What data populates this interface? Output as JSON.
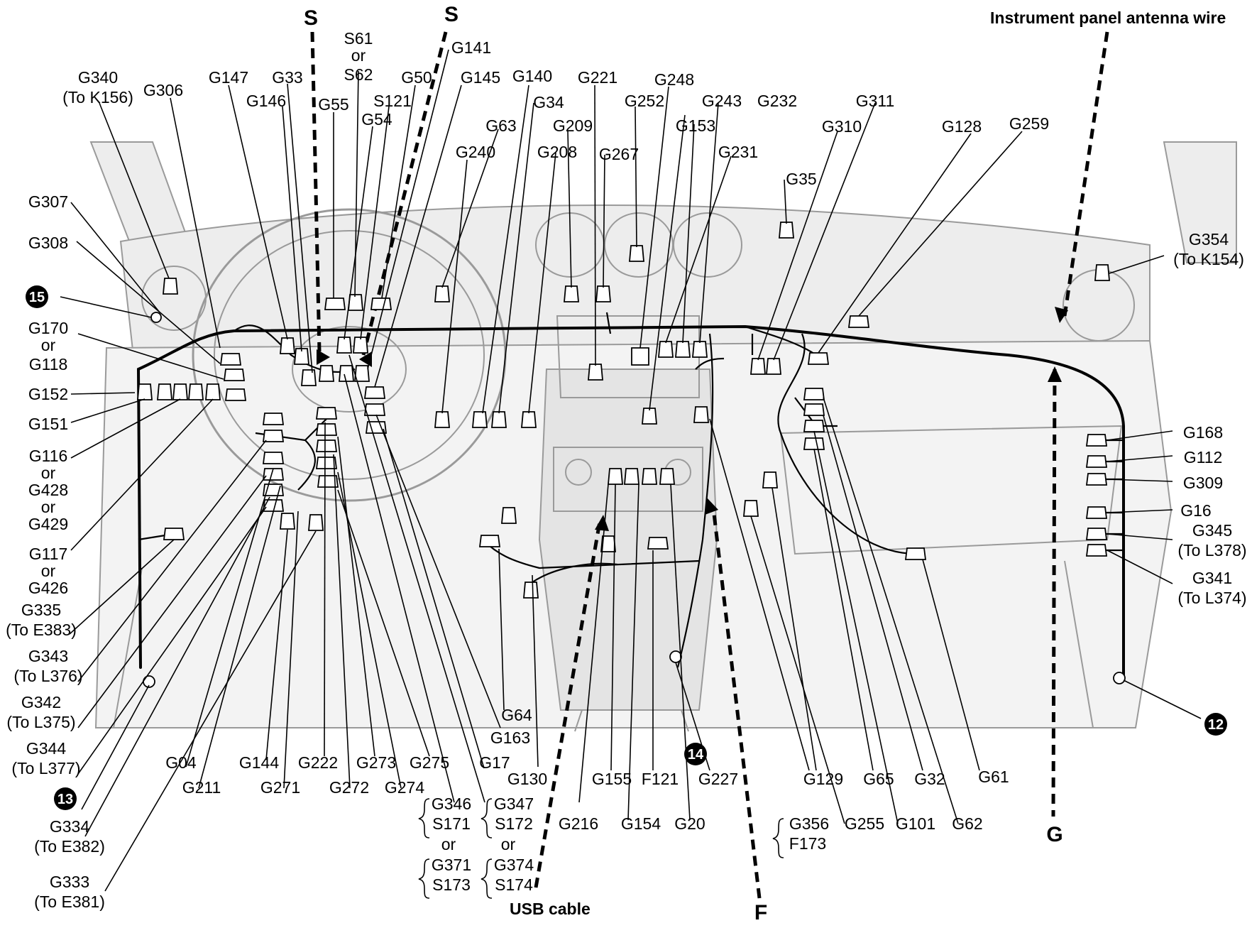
{
  "direction_markers": {
    "s_left": "S",
    "s_right": "S",
    "f": "F",
    "g": "G",
    "instrument_panel_antenna_wire": "Instrument panel antenna wire",
    "usb_cable": "USB cable"
  },
  "badges": {
    "b12": "12",
    "b13": "13",
    "b14": "14",
    "b15": "15"
  },
  "labels": {
    "g340": "G340",
    "to_k156": "(To K156)",
    "g306": "G306",
    "g147": "G147",
    "g33": "G33",
    "g146": "G146",
    "g55": "G55",
    "s61": "S61",
    "or_s61": "or",
    "s62": "S62",
    "g54": "G54",
    "s121": "S121",
    "g50": "G50",
    "g141": "G141",
    "g145": "G145",
    "g140": "G140",
    "g34": "G34",
    "g63": "G63",
    "g240": "G240",
    "g221": "G221",
    "g209": "G209",
    "g208": "G208",
    "g248": "G248",
    "g252": "G252",
    "g267": "G267",
    "g243": "G243",
    "g153": "G153",
    "g232": "G232",
    "g231": "G231",
    "g311": "G311",
    "g310": "G310",
    "g35": "G35",
    "g128": "G128",
    "g259": "G259",
    "g354": "G354",
    "to_k154": "(To K154)",
    "g307": "G307",
    "g308": "G308",
    "g170": "G170",
    "or_g170": "or",
    "g118": "G118",
    "g152": "G152",
    "g151": "G151",
    "g116": "G116",
    "or_g116a": "or",
    "g428": "G428",
    "or_g116b": "or",
    "g429": "G429",
    "g117": "G117",
    "or_g117": "or",
    "g426": "G426",
    "g335": "G335",
    "to_e383": "(To E383)",
    "g343": "G343",
    "to_l376": "(To L376)",
    "g342": "G342",
    "to_l375": "(To L375)",
    "g344": "G344",
    "to_l377": "(To L377)",
    "g334": "G334",
    "to_e382": "(To E382)",
    "g333": "G333",
    "to_e381": "(To E381)",
    "g04": "G04",
    "g211": "G211",
    "g144": "G144",
    "g271": "G271",
    "g222": "G222",
    "g272": "G272",
    "g273": "G273",
    "g274": "G274",
    "g275": "G275",
    "g346": "G346",
    "s171": "S171",
    "or_g346": "or",
    "g371": "G371",
    "s173": "S173",
    "g347": "G347",
    "s172": "S172",
    "or_g347": "or",
    "g374": "G374",
    "s174": "S174",
    "g17": "G17",
    "g163": "G163",
    "g64": "G64",
    "g130": "G130",
    "g216": "G216",
    "g155": "G155",
    "g154": "G154",
    "f121": "F121",
    "g20": "G20",
    "g227": "G227",
    "g356": "G356",
    "f173": "F173",
    "g129": "G129",
    "g255": "G255",
    "g65": "G65",
    "g101": "G101",
    "g32": "G32",
    "g62": "G62",
    "g61": "G61",
    "g168": "G168",
    "g112": "G112",
    "g309": "G309",
    "g16": "G16",
    "g345": "G345",
    "to_l378": "(To L378)",
    "g341": "G341",
    "to_l374": "(To L374)"
  }
}
